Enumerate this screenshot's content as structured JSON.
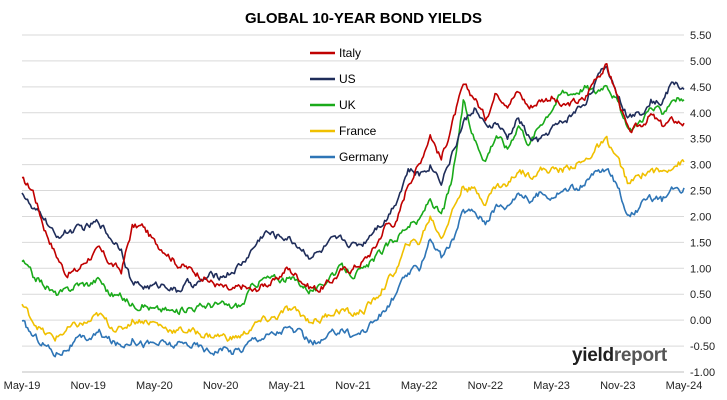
{
  "chart_data": {
    "type": "line",
    "title": "GLOBAL 10-YEAR BOND YIELDS",
    "xlabel": "",
    "ylabel": "",
    "x_ticks": [
      "May-19",
      "Nov-19",
      "May-20",
      "Nov-20",
      "May-21",
      "Nov-21",
      "May-22",
      "Nov-22",
      "May-23",
      "Nov-23",
      "May-24"
    ],
    "y_ticks": [
      "5.50",
      "5.00",
      "4.50",
      "4.00",
      "3.50",
      "3.00",
      "2.50",
      "2.00",
      "1.50",
      "1.00",
      "0.50",
      "0.00",
      "-0.50",
      "-1.00"
    ],
    "ylim": [
      -1.0,
      5.5
    ],
    "grid": "horizontal",
    "legend_position": "top-center",
    "y_axis_side": "right",
    "x": [
      "2019-05",
      "2019-06",
      "2019-07",
      "2019-08",
      "2019-09",
      "2019-10",
      "2019-11",
      "2019-12",
      "2020-01",
      "2020-02",
      "2020-03",
      "2020-04",
      "2020-05",
      "2020-06",
      "2020-07",
      "2020-08",
      "2020-09",
      "2020-10",
      "2020-11",
      "2020-12",
      "2021-01",
      "2021-02",
      "2021-03",
      "2021-04",
      "2021-05",
      "2021-06",
      "2021-07",
      "2021-08",
      "2021-09",
      "2021-10",
      "2021-11",
      "2021-12",
      "2022-01",
      "2022-02",
      "2022-03",
      "2022-04",
      "2022-05",
      "2022-06",
      "2022-07",
      "2022-08",
      "2022-09",
      "2022-10",
      "2022-11",
      "2022-12",
      "2023-01",
      "2023-02",
      "2023-03",
      "2023-04",
      "2023-05",
      "2023-06",
      "2023-07",
      "2023-08",
      "2023-09",
      "2023-10",
      "2023-11",
      "2023-12",
      "2024-01",
      "2024-02",
      "2024-03",
      "2024-04",
      "2024-05"
    ],
    "series": [
      {
        "name": "Italy",
        "color": "#c00000",
        "values": [
          2.7,
          2.5,
          1.8,
          1.3,
          0.9,
          0.95,
          1.2,
          1.35,
          1.1,
          0.95,
          1.8,
          1.8,
          1.5,
          1.35,
          1.1,
          1.0,
          0.9,
          0.75,
          0.65,
          0.55,
          0.65,
          0.55,
          0.7,
          0.75,
          1.0,
          0.85,
          0.65,
          0.6,
          0.75,
          0.95,
          1.0,
          1.15,
          1.4,
          1.85,
          1.9,
          2.65,
          3.0,
          3.6,
          3.1,
          3.8,
          4.5,
          4.3,
          3.9,
          4.4,
          4.2,
          4.4,
          4.1,
          4.25,
          4.3,
          4.1,
          4.2,
          4.25,
          4.7,
          4.9,
          4.3,
          3.6,
          3.75,
          3.95,
          3.75,
          3.85,
          3.8
        ]
      },
      {
        "name": "US",
        "color": "#1f2d5a",
        "values": [
          2.5,
          2.1,
          2.0,
          1.6,
          1.7,
          1.75,
          1.8,
          1.9,
          1.6,
          1.4,
          0.7,
          0.65,
          0.65,
          0.7,
          0.55,
          0.7,
          0.7,
          0.85,
          0.85,
          0.93,
          1.1,
          1.4,
          1.7,
          1.63,
          1.6,
          1.45,
          1.25,
          1.3,
          1.5,
          1.55,
          1.45,
          1.5,
          1.8,
          1.95,
          2.35,
          2.9,
          2.8,
          3.0,
          2.7,
          3.2,
          3.8,
          4.1,
          3.7,
          3.8,
          3.5,
          3.9,
          3.5,
          3.45,
          3.7,
          3.8,
          4.0,
          4.2,
          4.6,
          4.9,
          4.35,
          3.9,
          4.0,
          4.25,
          4.2,
          4.6,
          4.45
        ]
      },
      {
        "name": "UK",
        "color": "#1aaa1a",
        "values": [
          1.15,
          0.85,
          0.7,
          0.5,
          0.55,
          0.7,
          0.7,
          0.8,
          0.5,
          0.45,
          0.3,
          0.3,
          0.2,
          0.2,
          0.15,
          0.25,
          0.25,
          0.3,
          0.3,
          0.25,
          0.3,
          0.7,
          0.8,
          0.8,
          0.8,
          0.75,
          0.6,
          0.6,
          0.9,
          1.0,
          0.9,
          0.95,
          1.2,
          1.4,
          1.6,
          1.85,
          1.9,
          2.35,
          2.0,
          2.7,
          4.2,
          3.5,
          3.1,
          3.6,
          3.3,
          3.8,
          3.4,
          3.8,
          4.1,
          4.4,
          4.4,
          4.5,
          4.4,
          4.6,
          4.2,
          3.6,
          3.85,
          4.1,
          4.0,
          4.3,
          4.25
        ]
      },
      {
        "name": "France",
        "color": "#f0c000",
        "values": [
          0.3,
          0.0,
          -0.25,
          -0.35,
          -0.2,
          -0.1,
          -0.05,
          0.1,
          -0.1,
          -0.2,
          0.0,
          0.0,
          -0.05,
          -0.15,
          -0.2,
          -0.2,
          -0.25,
          -0.3,
          -0.3,
          -0.35,
          -0.3,
          -0.1,
          0.0,
          0.05,
          0.2,
          0.15,
          0.0,
          0.0,
          0.15,
          0.2,
          0.1,
          0.2,
          0.4,
          0.7,
          1.0,
          1.5,
          1.5,
          2.0,
          1.6,
          2.1,
          2.6,
          2.5,
          2.3,
          2.6,
          2.6,
          2.9,
          2.8,
          2.9,
          2.9,
          2.9,
          3.0,
          3.05,
          3.3,
          3.45,
          3.1,
          2.6,
          2.8,
          2.9,
          2.85,
          3.0,
          3.05
        ]
      },
      {
        "name": "Germany",
        "color": "#2e75b6",
        "values": [
          -0.05,
          -0.3,
          -0.45,
          -0.65,
          -0.55,
          -0.4,
          -0.35,
          -0.25,
          -0.4,
          -0.5,
          -0.35,
          -0.45,
          -0.45,
          -0.45,
          -0.5,
          -0.45,
          -0.5,
          -0.6,
          -0.55,
          -0.6,
          -0.55,
          -0.35,
          -0.3,
          -0.25,
          -0.15,
          -0.25,
          -0.4,
          -0.45,
          -0.3,
          -0.15,
          -0.3,
          -0.2,
          0.0,
          0.2,
          0.55,
          0.9,
          1.0,
          1.6,
          1.2,
          1.5,
          2.1,
          2.1,
          1.9,
          2.2,
          2.2,
          2.5,
          2.3,
          2.45,
          2.4,
          2.5,
          2.55,
          2.6,
          2.85,
          2.9,
          2.6,
          2.0,
          2.2,
          2.35,
          2.3,
          2.5,
          2.55
        ]
      }
    ]
  },
  "logo": {
    "part1": "yield",
    "part2": "report"
  }
}
